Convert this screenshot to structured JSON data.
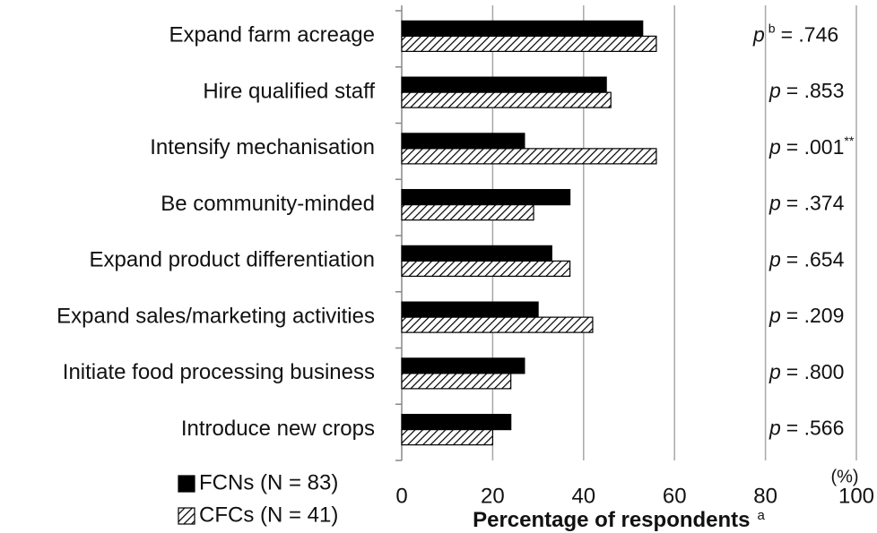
{
  "chart_data": {
    "type": "hbar",
    "categories": [
      "Expand farm acreage",
      "Hire qualified staff",
      "Intensify mechanisation",
      "Be community-minded",
      "Expand product differentiation",
      "Expand sales/marketing activities",
      "Initiate food processing business",
      "Introduce new crops"
    ],
    "series": [
      {
        "name": "FCNs (N = 83)",
        "color": "#000000",
        "values": [
          53,
          45,
          27,
          37,
          33,
          30,
          27,
          24
        ]
      },
      {
        "name": "CFCs (N = 41)",
        "color": "#ffffff",
        "hatch": true,
        "values": [
          56,
          46,
          56,
          29,
          37,
          42,
          24,
          20
        ]
      }
    ],
    "xlim": [
      0,
      100
    ],
    "xticks": [
      0,
      20,
      40,
      60,
      80,
      100
    ],
    "x_label": "Percentage of respondents",
    "x_label_sup": "a",
    "x_unit": "(%)",
    "grid": true,
    "legend": "bottom-left",
    "annotations": [
      {
        "italic": "p",
        "prefix_sup": "b",
        "text": "= .746"
      },
      {
        "italic": "p",
        "text": "= .853"
      },
      {
        "italic": "p",
        "text": "= .001",
        "suffix_sup": "**"
      },
      {
        "italic": "p",
        "text": "= .374"
      },
      {
        "italic": "p",
        "text": "= .654"
      },
      {
        "italic": "p",
        "text": "= .209"
      },
      {
        "italic": "p",
        "text": "= .800"
      },
      {
        "italic": "p",
        "text": "= .566"
      }
    ]
  }
}
